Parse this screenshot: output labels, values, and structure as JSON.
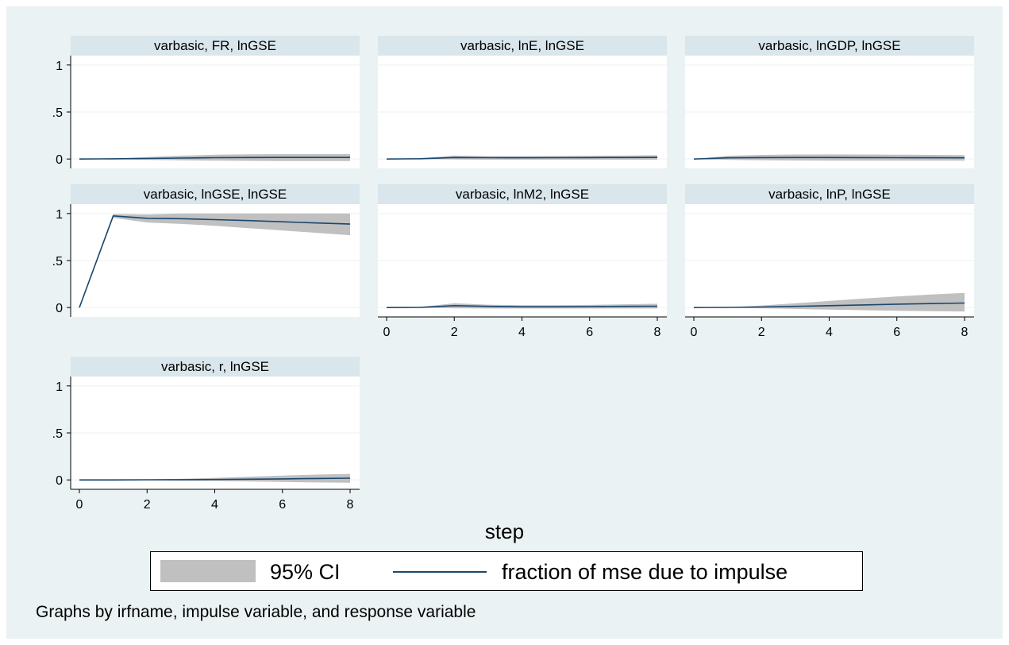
{
  "chart_data": {
    "type": "line",
    "layout": "3x3 small multiples",
    "colors": {
      "ci_band": "#c0c0c0",
      "line": "#1a476f",
      "panel_header": "#d9e6eb",
      "outer_background": "#eaf2f3"
    },
    "x": [
      0,
      1,
      2,
      3,
      4,
      5,
      6,
      7,
      8
    ],
    "xlim": [
      0,
      8
    ],
    "ylim": [
      -0.1,
      1.1
    ],
    "y_ticks": [
      0,
      0.5,
      1
    ],
    "y_tick_labels": [
      "0",
      ".5",
      "1"
    ],
    "x_ticks": [
      0,
      2,
      4,
      6,
      8
    ],
    "x_tick_labels": [
      "0",
      "2",
      "4",
      "6",
      "8"
    ],
    "xlabel": "step",
    "note": "Graphs by irfname, impulse variable, and response variable",
    "legend": {
      "placement": "bottom",
      "ci_label": "95% CI",
      "line_label": "fraction of mse due to impulse"
    },
    "panels": [
      {
        "title": "varbasic, FR, lnGSE",
        "line": [
          0,
          0.002,
          0.006,
          0.01,
          0.014,
          0.016,
          0.017,
          0.017,
          0.017
        ],
        "lower": [
          0,
          -0.002,
          -0.01,
          -0.015,
          -0.018,
          -0.02,
          -0.021,
          -0.022,
          -0.022
        ],
        "upper": [
          0,
          0.006,
          0.022,
          0.035,
          0.045,
          0.05,
          0.052,
          0.053,
          0.053
        ]
      },
      {
        "title": "varbasic, lnE, lnGSE",
        "line": [
          0,
          0.003,
          0.016,
          0.014,
          0.013,
          0.014,
          0.015,
          0.016,
          0.017
        ],
        "lower": [
          0,
          -0.002,
          -0.005,
          -0.008,
          -0.008,
          -0.008,
          -0.008,
          -0.008,
          -0.008
        ],
        "upper": [
          0,
          0.008,
          0.036,
          0.03,
          0.03,
          0.032,
          0.034,
          0.036,
          0.04
        ]
      },
      {
        "title": "varbasic, lnGDP, lnGSE",
        "line": [
          0,
          0.012,
          0.015,
          0.016,
          0.016,
          0.015,
          0.014,
          0.013,
          0.012
        ],
        "lower": [
          0,
          -0.01,
          -0.014,
          -0.016,
          -0.017,
          -0.018,
          -0.018,
          -0.018,
          -0.018
        ],
        "upper": [
          0,
          0.034,
          0.044,
          0.048,
          0.049,
          0.048,
          0.046,
          0.044,
          0.042
        ]
      },
      {
        "title": "varbasic, lnGSE, lnGSE",
        "line": [
          0,
          0.975,
          0.95,
          0.945,
          0.935,
          0.925,
          0.912,
          0.9,
          0.888
        ],
        "lower": [
          0,
          0.955,
          0.905,
          0.89,
          0.87,
          0.845,
          0.82,
          0.795,
          0.77
        ],
        "upper": [
          0,
          0.995,
          0.99,
          1.0,
          1.0,
          1.0,
          1.0,
          1.0,
          1.0
        ]
      },
      {
        "title": "varbasic, lnM2, lnGSE",
        "line": [
          0,
          0.002,
          0.02,
          0.012,
          0.008,
          0.008,
          0.01,
          0.012,
          0.014
        ],
        "lower": [
          0,
          -0.003,
          -0.008,
          -0.01,
          -0.01,
          -0.01,
          -0.01,
          -0.01,
          -0.01
        ],
        "upper": [
          0,
          0.006,
          0.045,
          0.03,
          0.024,
          0.024,
          0.028,
          0.034,
          0.04
        ]
      },
      {
        "title": "varbasic, lnP, lnGSE",
        "line": [
          0,
          0.001,
          0.006,
          0.012,
          0.02,
          0.028,
          0.036,
          0.042,
          0.048
        ],
        "lower": [
          0,
          -0.002,
          -0.008,
          -0.015,
          -0.022,
          -0.028,
          -0.034,
          -0.038,
          -0.042
        ],
        "upper": [
          0,
          0.004,
          0.022,
          0.045,
          0.07,
          0.095,
          0.118,
          0.138,
          0.155
        ]
      },
      {
        "title": "varbasic, r, lnGSE",
        "line": [
          0,
          0.0,
          0.001,
          0.002,
          0.004,
          0.007,
          0.011,
          0.015,
          0.018
        ],
        "lower": [
          0,
          -0.001,
          -0.003,
          -0.006,
          -0.01,
          -0.016,
          -0.022,
          -0.027,
          -0.03
        ],
        "upper": [
          0,
          0.001,
          0.005,
          0.012,
          0.022,
          0.034,
          0.046,
          0.056,
          0.064
        ]
      }
    ]
  }
}
